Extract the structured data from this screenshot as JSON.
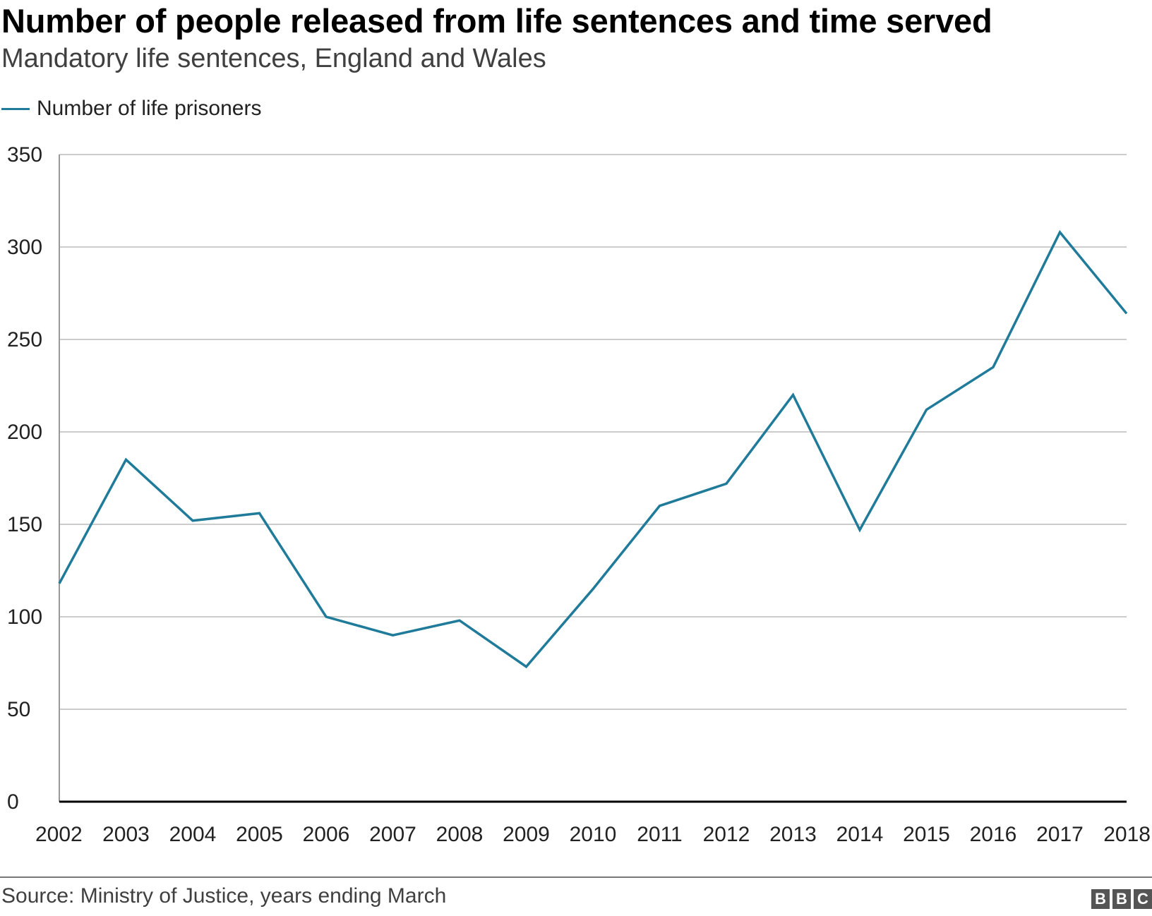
{
  "header": {
    "title": "Number of people released from life sentences and time served",
    "subtitle": "Mandatory life sentences, England and Wales"
  },
  "legend": {
    "label": "Number of life prisoners"
  },
  "colors": {
    "series": "#1f7b99",
    "gridline": "#cccccc",
    "axis": "#000000",
    "footer_rule": "#777777",
    "logo_bg": "#555555"
  },
  "chart_data": {
    "type": "line",
    "title": "Number of people released from life sentences and time served",
    "subtitle": "Mandatory life sentences, England and Wales",
    "xlabel": "",
    "ylabel": "",
    "x": [
      "2002",
      "2003",
      "2004",
      "2005",
      "2006",
      "2007",
      "2008",
      "2009",
      "2010",
      "2011",
      "2012",
      "2013",
      "2014",
      "2015",
      "2016",
      "2017",
      "2018"
    ],
    "series": [
      {
        "name": "Number of life prisoners",
        "values": [
          118,
          185,
          152,
          156,
          100,
          90,
          98,
          73,
          115,
          160,
          172,
          220,
          147,
          212,
          235,
          308,
          264
        ]
      }
    ],
    "ylim": [
      0,
      350
    ],
    "yticks": [
      "0",
      "50",
      "100",
      "150",
      "200",
      "250",
      "300",
      "350"
    ],
    "grid": true,
    "legend_position": "top-left"
  },
  "footer": {
    "source": "Source: Ministry of Justice, years ending March",
    "logo_letters": [
      "B",
      "B",
      "C"
    ]
  }
}
